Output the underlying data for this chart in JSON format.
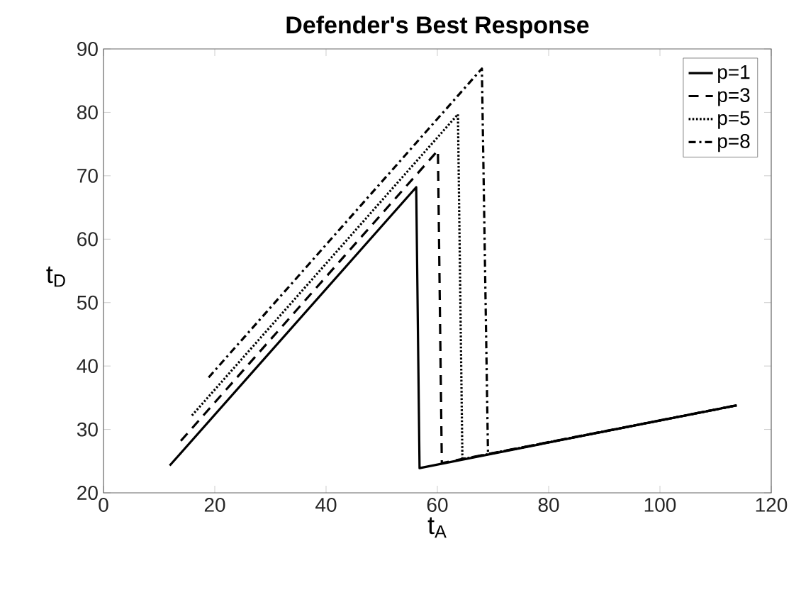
{
  "chart_data": {
    "type": "line",
    "title": "Defender's Best Response",
    "xlabel": "t$_{A}$",
    "ylabel": "t$_{D}$",
    "xlim": [
      0,
      120
    ],
    "xticks": [
      0,
      20,
      40,
      60,
      80,
      100,
      120
    ],
    "ylim": [
      20,
      90
    ],
    "yticks": [
      20,
      30,
      40,
      50,
      60,
      70,
      80,
      90
    ],
    "grid": false,
    "legend": "top right",
    "marker": "none",
    "series": [
      {
        "name": "p=1",
        "color": "#000000",
        "line_style": "solid",
        "x": [
          11.9,
          56.2,
          56.8,
          113.8
        ],
        "values": [
          24.3,
          68.2,
          23.9,
          33.8
        ]
      },
      {
        "name": "p=3",
        "color": "#000000",
        "line_style": "dashed",
        "x": [
          13.9,
          60.1,
          60.8,
          113.8
        ],
        "values": [
          28.2,
          74.0,
          24.7,
          33.8
        ]
      },
      {
        "name": "p=5",
        "color": "#000000",
        "line_style": "dotted",
        "x": [
          15.9,
          63.7,
          64.5,
          113.8
        ],
        "values": [
          32.2,
          79.7,
          25.3,
          33.8
        ]
      },
      {
        "name": "p=8",
        "color": "#000000",
        "line_style": "dashdot",
        "x": [
          18.9,
          68.0,
          69.1,
          113.8
        ],
        "values": [
          38.2,
          86.9,
          26.1,
          33.8
        ]
      }
    ]
  }
}
